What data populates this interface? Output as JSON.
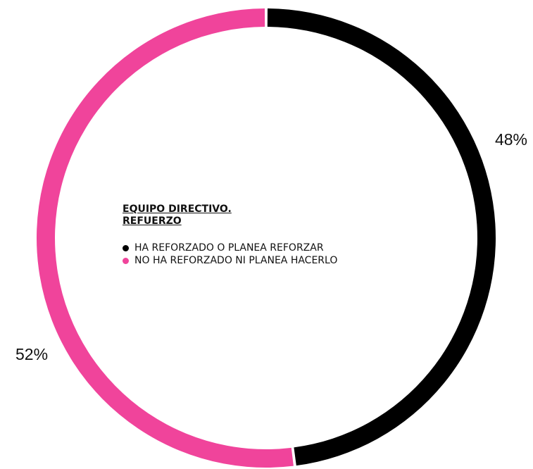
{
  "chart_data": {
    "type": "pie",
    "title": "EQUIPO DIRECTIVO.\nREFUERZO",
    "slices": [
      {
        "label": "HA REFORZADO O PLANEA REFORZAR",
        "value": 48,
        "value_label": "48%",
        "color": "#000000"
      },
      {
        "label": "NO HA REFORZADO NI PLANEA HACERLO",
        "value": 52,
        "value_label": "52%",
        "color": "#f0449b"
      }
    ],
    "legend_placement": "center"
  }
}
